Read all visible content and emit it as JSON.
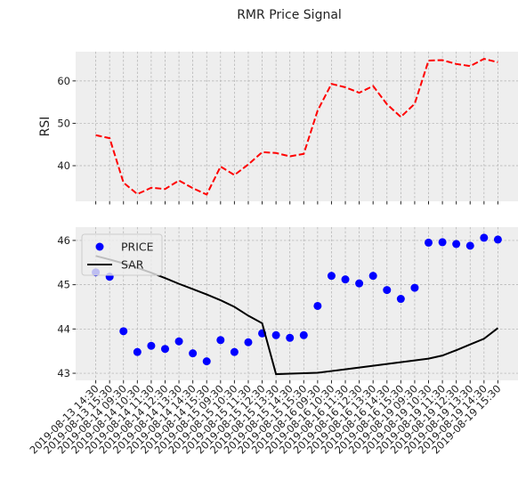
{
  "title": "RMR Price Signal",
  "chart_data": [
    {
      "type": "line",
      "ylabel": "RSI",
      "color": "#ff0000",
      "linestyle": "dashed",
      "values": [
        47.2,
        46.5,
        36.0,
        33.3,
        34.8,
        34.5,
        36.5,
        34.7,
        33.2,
        39.8,
        37.8,
        40.3,
        43.2,
        43.0,
        42.2,
        42.8,
        53.0,
        59.3,
        58.5,
        57.2,
        58.8,
        54.5,
        51.5,
        54.6,
        64.8,
        64.9,
        64.0,
        63.5,
        65.2,
        64.4
      ],
      "ylim": [
        31.6,
        66.9
      ],
      "yticks": [
        40,
        50,
        60
      ],
      "grid": true
    },
    {
      "type": "line",
      "legend": "upper left",
      "categories": [
        "2019-08-13 14:30",
        "2019-08-13 15:30",
        "2019-08-14 09:30",
        "2019-08-14 10:30",
        "2019-08-14 11:30",
        "2019-08-14 12:30",
        "2019-08-14 13:30",
        "2019-08-14 14:30",
        "2019-08-14 15:30",
        "2019-08-15 09:30",
        "2019-08-15 10:30",
        "2019-08-15 11:30",
        "2019-08-15 12:30",
        "2019-08-15 13:30",
        "2019-08-15 14:30",
        "2019-08-15 15:30",
        "2019-08-16 09:30",
        "2019-08-16 10:30",
        "2019-08-16 11:30",
        "2019-08-16 12:30",
        "2019-08-16 13:30",
        "2019-08-16 14:30",
        "2019-08-16 15:30",
        "2019-08-19 09:30",
        "2019-08-19 10:30",
        "2019-08-19 11:30",
        "2019-08-19 12:30",
        "2019-08-19 13:30",
        "2019-08-19 14:30",
        "2019-08-19 15:30"
      ],
      "series": [
        {
          "name": "PRICE",
          "color": "#0000ff",
          "style": "markers",
          "values": [
            45.28,
            45.18,
            43.95,
            43.48,
            43.62,
            43.55,
            43.72,
            43.45,
            43.27,
            43.75,
            43.48,
            43.7,
            43.9,
            43.86,
            43.8,
            43.86,
            44.52,
            45.2,
            45.12,
            45.03,
            45.2,
            44.88,
            44.68,
            44.93,
            45.95,
            45.96,
            45.92,
            45.88,
            46.06,
            46.02
          ]
        },
        {
          "name": "SAR",
          "color": "#000000",
          "style": "line",
          "values": [
            45.65,
            45.57,
            45.48,
            45.38,
            45.27,
            45.15,
            45.02,
            44.9,
            44.78,
            44.65,
            44.5,
            44.3,
            44.13,
            42.98,
            42.99,
            43.0,
            43.01,
            43.05,
            43.09,
            43.13,
            43.17,
            43.21,
            43.25,
            43.29,
            43.33,
            43.4,
            43.52,
            43.65,
            43.78,
            44.02
          ]
        }
      ],
      "ylim": [
        42.84,
        46.3
      ],
      "yticks": [
        43,
        44,
        45,
        46
      ],
      "grid": true
    }
  ]
}
